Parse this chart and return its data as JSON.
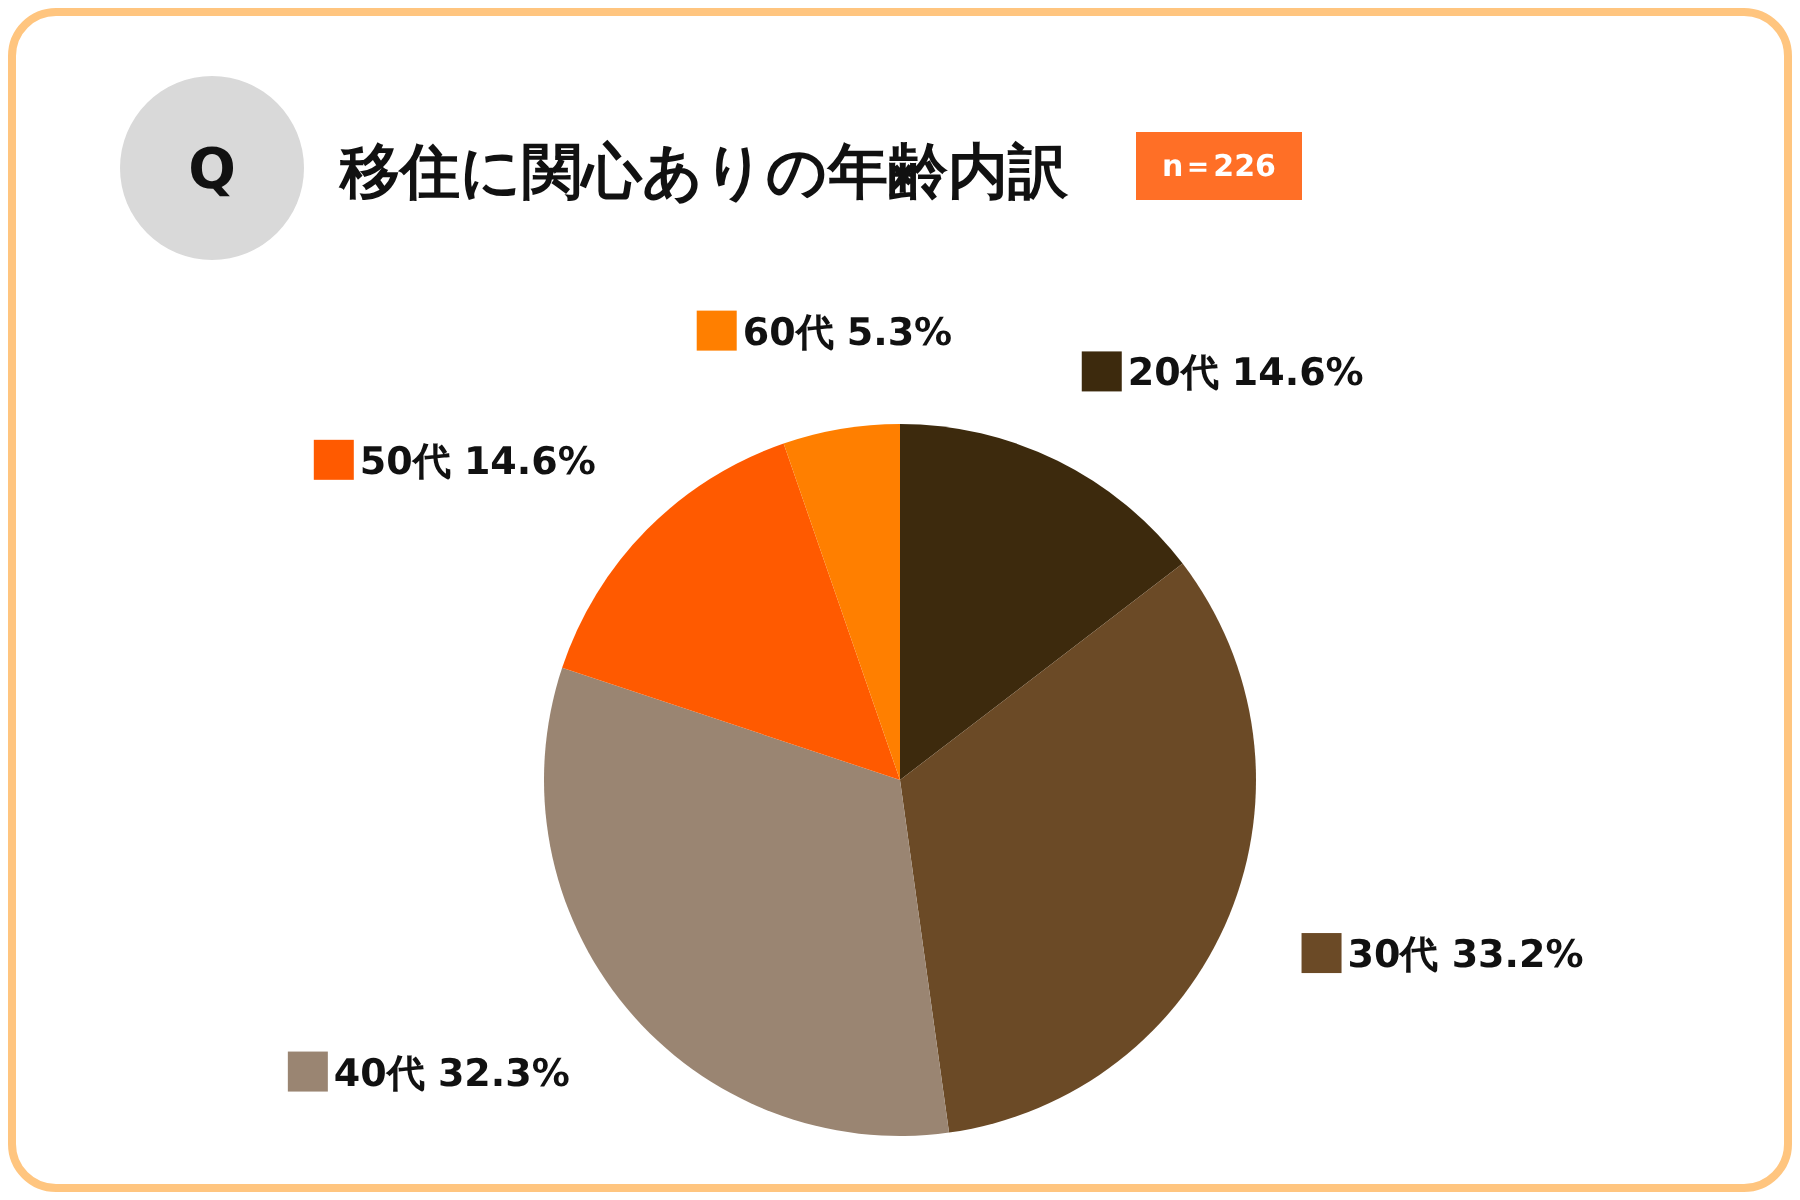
{
  "chart_data": {
    "type": "pie",
    "title": "移住に関心ありの年齢内訳",
    "annotations": [
      "Q",
      "n＝226"
    ],
    "categories": [
      "20代",
      "30代",
      "40代",
      "50代",
      "60代"
    ],
    "values": [
      14.6,
      33.2,
      32.3,
      14.6,
      5.3
    ],
    "value_labels": [
      "14.6%",
      "33.2%",
      "32.3%",
      "14.6%",
      "5.3%"
    ],
    "colors": [
      "#3d2a0d",
      "#6b4a26",
      "#9a8572",
      "#ff5a00",
      "#ff7f00"
    ],
    "legend": "top right"
  }
}
